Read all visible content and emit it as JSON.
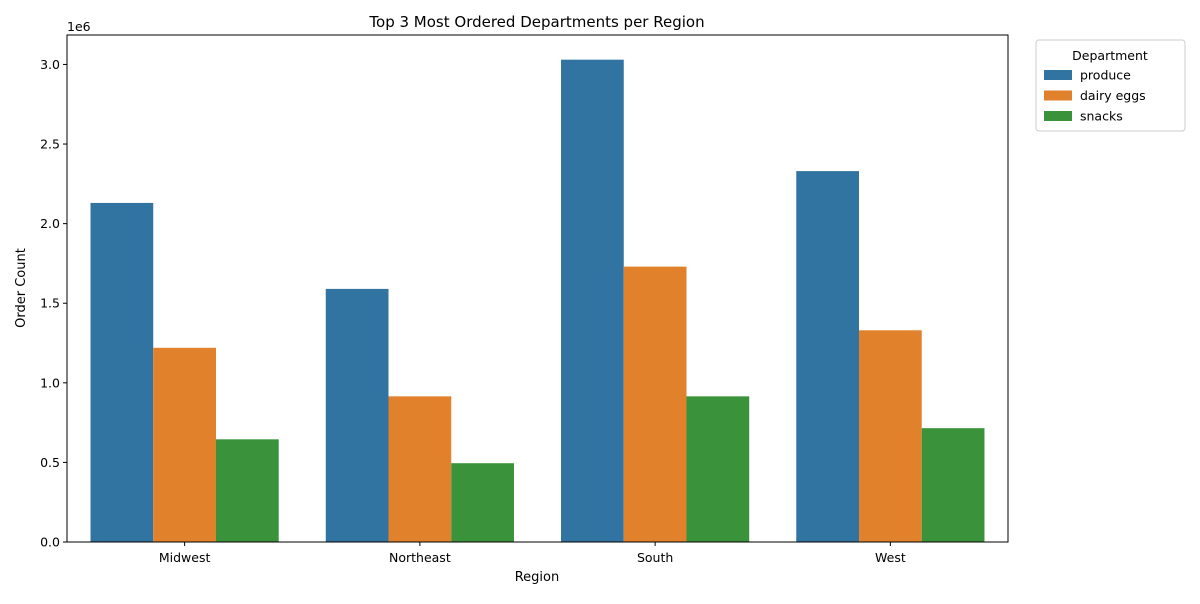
{
  "chart_data": {
    "type": "bar",
    "title": "Top 3 Most Ordered Departments per Region",
    "xlabel": "Region",
    "ylabel": "Order Count",
    "offset_text": "1e6",
    "categories": [
      "Midwest",
      "Northeast",
      "South",
      "West"
    ],
    "series": [
      {
        "name": "produce",
        "color": "#3274a1",
        "values": [
          2130000,
          1590000,
          3030000,
          2330000
        ]
      },
      {
        "name": "dairy eggs",
        "color": "#e1812c",
        "values": [
          1220000,
          915000,
          1730000,
          1330000
        ]
      },
      {
        "name": "snacks",
        "color": "#3a923a",
        "values": [
          645000,
          495000,
          915000,
          715000
        ]
      }
    ],
    "yticks": [
      0,
      500000,
      1000000,
      1500000,
      2000000,
      2500000,
      3000000
    ],
    "ytick_labels": [
      "0.0",
      "0.5",
      "1.0",
      "1.5",
      "2.0",
      "2.5",
      "3.0"
    ],
    "ylim": [
      0,
      3185000
    ],
    "grid": false,
    "legend": {
      "title": "Department",
      "placement": "outside-top-right"
    }
  }
}
